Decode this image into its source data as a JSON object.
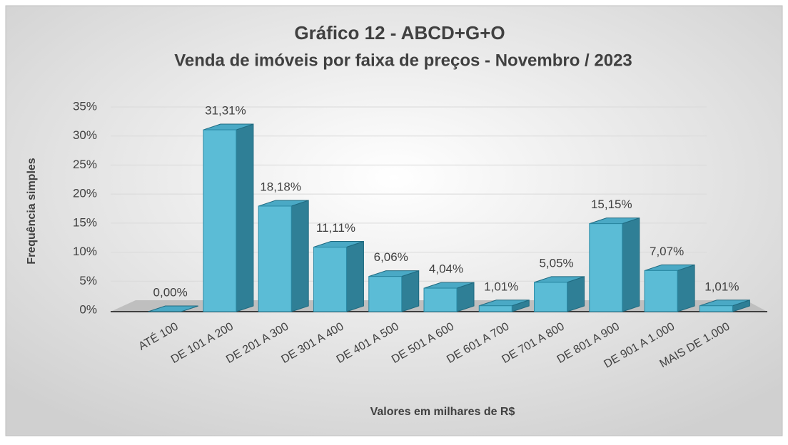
{
  "chart_data": {
    "type": "bar3d",
    "title": "Gráfico  12 - ABCD+G+O",
    "subtitle": "Venda de imóveis por faixa de preços - Novembro / 2023",
    "y_label": "Frequência simples",
    "x_label": "Valores em milhares de R$",
    "categories": [
      "ATÉ 100",
      "DE 101 A 200",
      "DE 201 A 300",
      "DE 301 A 400",
      "DE 401 A 500",
      "DE 501 A 600",
      "DE 601 A 700",
      "DE 701 A 800",
      "DE 801 A 900",
      "DE 901 A 1.000",
      "MAIS DE 1.000"
    ],
    "values": [
      0,
      31.31,
      18.18,
      11.11,
      6.06,
      4.04,
      1.01,
      5.05,
      15.15,
      7.07,
      1.01
    ],
    "value_labels": [
      "0,00%",
      "31,31%",
      "18,18%",
      "11,11%",
      "6,06%",
      "4,04%",
      "1,01%",
      "5,05%",
      "15,15%",
      "7,07%",
      "1,01%"
    ],
    "color": "#5bbcd6",
    "ylim": [
      0,
      35
    ],
    "yticks": [
      {
        "value": 0,
        "label": "0%"
      },
      {
        "value": 5,
        "label": "5%"
      },
      {
        "value": 10,
        "label": "10%"
      },
      {
        "value": 15,
        "label": "15%"
      },
      {
        "value": 20,
        "label": "20%"
      },
      {
        "value": 25,
        "label": "25%"
      },
      {
        "value": 30,
        "label": "30%"
      },
      {
        "value": 35,
        "label": "35%"
      }
    ],
    "grid": true
  }
}
